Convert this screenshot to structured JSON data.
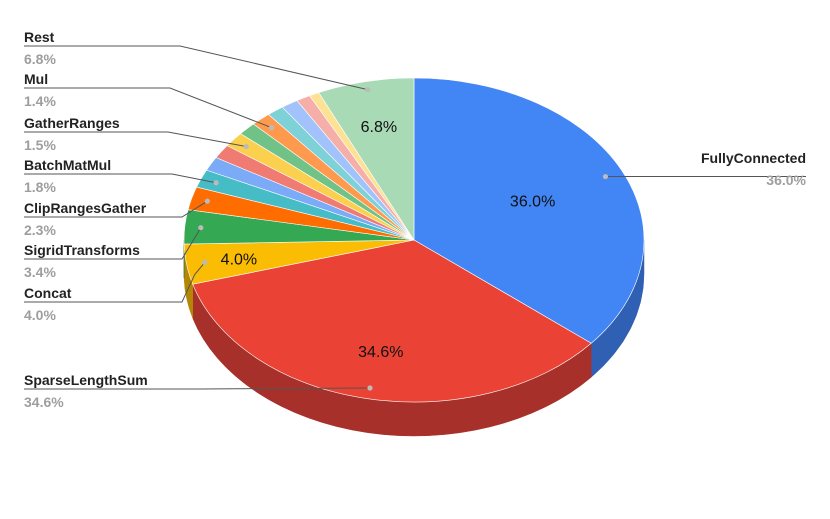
{
  "chart_data": {
    "type": "pie",
    "title": "",
    "slices": [
      {
        "label": "FullyConnected",
        "value": 36.0,
        "display": "36.0%",
        "color": "#4285f4",
        "side_color": "#3060b4"
      },
      {
        "label": "SparseLengthSum",
        "value": 34.6,
        "display": "34.6%",
        "color": "#ea4335",
        "side_color": "#a8302a"
      },
      {
        "label": "Concat",
        "value": 4.0,
        "display": "4.0%",
        "color": "#fbbc04",
        "side_color": "#b38704"
      },
      {
        "label": "SigridTransforms",
        "value": 3.4,
        "display": "3.4%",
        "color": "#34a853",
        "side_color": "#257a3b"
      },
      {
        "label": "ClipRangesGather",
        "value": 2.3,
        "display": "2.3%",
        "color": "#ff6d01",
        "side_color": "#b54d01"
      },
      {
        "label": "BatchMatMul",
        "value": 1.8,
        "display": "1.8%",
        "color": "#46bdc6",
        "side_color": "#30878e"
      },
      {
        "label": "",
        "value": 1.4,
        "display": "",
        "color": "#7baaf7",
        "side_color": "#587ab0"
      },
      {
        "label": "",
        "value": 1.4,
        "display": "",
        "color": "#f07b72",
        "side_color": "#ab5851"
      },
      {
        "label": "GatherRanges",
        "value": 1.5,
        "display": "1.5%",
        "color": "#fcd04f",
        "side_color": "#b39538"
      },
      {
        "label": "",
        "value": 1.3,
        "display": "",
        "color": "#71c287",
        "side_color": "#508a60"
      },
      {
        "label": "Mul",
        "value": 1.4,
        "display": "1.4%",
        "color": "#ff994d",
        "side_color": "#b56d37"
      },
      {
        "label": "",
        "value": 1.2,
        "display": "",
        "color": "#7ed1d7",
        "side_color": "#5a9599"
      },
      {
        "label": "",
        "value": 1.2,
        "display": "",
        "color": "#a1c2fa",
        "side_color": "#7289b2"
      },
      {
        "label": "",
        "value": 1.0,
        "display": "",
        "color": "#f6aea9",
        "side_color": "#af7c78"
      },
      {
        "label": "",
        "value": 0.7,
        "display": "",
        "color": "#fde293",
        "side_color": "#b4a168"
      },
      {
        "label": "Rest",
        "value": 6.8,
        "display": "6.8%",
        "color": "#a8dab5",
        "side_color": "#779b81"
      }
    ]
  }
}
